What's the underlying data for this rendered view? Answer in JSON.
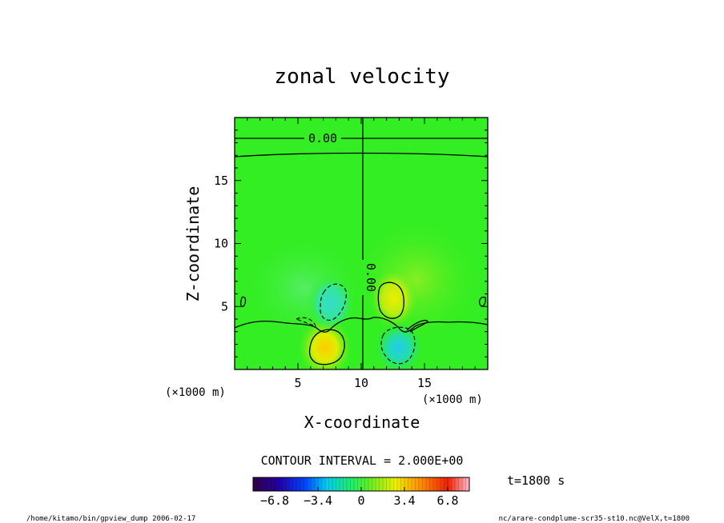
{
  "chart_data": {
    "type": "heatmap",
    "title": "zonal velocity",
    "xlabel": "X-coordinate",
    "ylabel": "Z-coordinate",
    "x_unit": "(×1000 m)",
    "z_unit": "(×1000 m)",
    "xlim": [
      0,
      20
    ],
    "zlim": [
      0,
      20
    ],
    "x_ticks": [
      5,
      10,
      15
    ],
    "z_ticks": [
      5,
      10,
      15
    ],
    "contour_interval": "CONTOUR INTERVAL = 2.000E+00",
    "contour_labels": [
      "0.00",
      "0.00"
    ],
    "time_label": "t=1800 s",
    "colorbar": {
      "range": [
        -8.5,
        8.5
      ],
      "tick_values": [
        -6.8,
        -3.4,
        0,
        3.4,
        6.8
      ],
      "tick_labels": [
        "−6.8",
        "−3.4",
        "0",
        "3.4",
        "6.8"
      ]
    },
    "field_extrema": [
      {
        "x": 7.2,
        "z": 2.0,
        "sign": "positive"
      },
      {
        "x": 12.6,
        "z": 5.8,
        "sign": "positive"
      },
      {
        "x": 8.4,
        "z": 5.4,
        "sign": "negative"
      },
      {
        "x": 13.0,
        "z": 2.0,
        "sign": "negative"
      }
    ]
  },
  "footer": {
    "left": "/home/kitamo/bin/gpview_dump  2006-02-17",
    "right": "nc/arare-condplume-scr35-st10.nc@VelX,t=1800"
  },
  "colors": {
    "background_field": "#33ee22",
    "axes": "#000000"
  }
}
